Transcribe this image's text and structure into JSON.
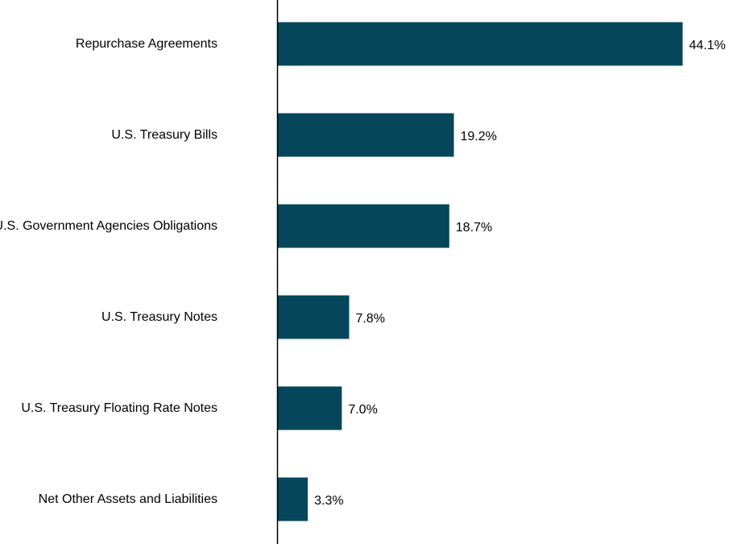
{
  "chart_data": {
    "type": "bar",
    "orientation": "horizontal",
    "categories": [
      "Repurchase Agreements",
      "U.S. Treasury Bills",
      "U.S. Government Agencies Obligations",
      "U.S. Treasury Notes",
      "U.S. Treasury Floating Rate Notes",
      "Net Other Assets and Liabilities"
    ],
    "values": [
      44.1,
      19.2,
      18.7,
      7.8,
      7.0,
      3.3
    ],
    "value_labels": [
      "44.1%",
      "19.2%",
      "18.7%",
      "7.8%",
      "7.0%",
      "3.3%"
    ],
    "xlim": [
      0,
      44.1
    ],
    "grid": false,
    "legend": "none"
  },
  "colors": {
    "bar": "#05465b",
    "axis": "#000000"
  }
}
